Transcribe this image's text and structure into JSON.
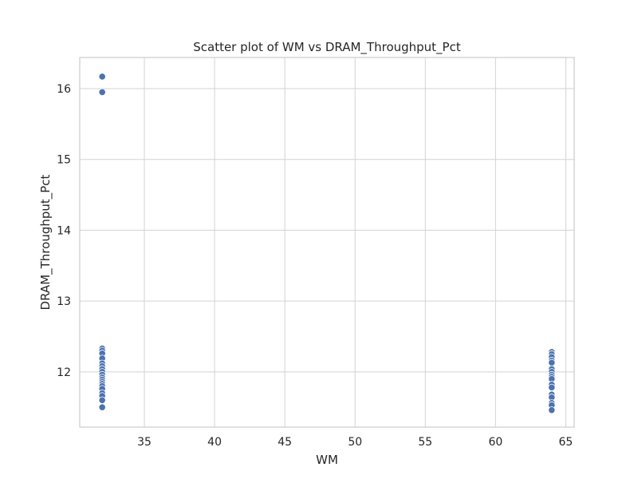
{
  "chart_data": {
    "type": "scatter",
    "title": "Scatter plot of WM vs DRAM_Throughput_Pct",
    "xlabel": "WM",
    "ylabel": "DRAM_Throughput_Pct",
    "xlim": [
      30.4,
      65.6
    ],
    "ylim": [
      11.22,
      16.44
    ],
    "xticks": [
      35,
      40,
      45,
      50,
      55,
      60,
      65
    ],
    "yticks": [
      12,
      13,
      14,
      15,
      16
    ],
    "grid": true,
    "marker_color": "#4c72b0",
    "points": [
      {
        "x": 32,
        "y": 16.17
      },
      {
        "x": 32,
        "y": 15.95
      },
      {
        "x": 32,
        "y": 12.33
      },
      {
        "x": 32,
        "y": 12.3
      },
      {
        "x": 32,
        "y": 12.26
      },
      {
        "x": 32,
        "y": 12.19
      },
      {
        "x": 32,
        "y": 12.12
      },
      {
        "x": 32,
        "y": 12.08
      },
      {
        "x": 32,
        "y": 12.04
      },
      {
        "x": 32,
        "y": 12.0
      },
      {
        "x": 32,
        "y": 11.96
      },
      {
        "x": 32,
        "y": 11.92
      },
      {
        "x": 32,
        "y": 11.89
      },
      {
        "x": 32,
        "y": 11.86
      },
      {
        "x": 32,
        "y": 11.83
      },
      {
        "x": 32,
        "y": 11.8
      },
      {
        "x": 32,
        "y": 11.76
      },
      {
        "x": 32,
        "y": 11.7
      },
      {
        "x": 32,
        "y": 11.66
      },
      {
        "x": 32,
        "y": 11.6
      },
      {
        "x": 32,
        "y": 11.5
      },
      {
        "x": 64,
        "y": 12.28
      },
      {
        "x": 64,
        "y": 12.25
      },
      {
        "x": 64,
        "y": 12.21
      },
      {
        "x": 64,
        "y": 12.16
      },
      {
        "x": 64,
        "y": 12.13
      },
      {
        "x": 64,
        "y": 12.04
      },
      {
        "x": 64,
        "y": 12.0
      },
      {
        "x": 64,
        "y": 11.96
      },
      {
        "x": 64,
        "y": 11.93
      },
      {
        "x": 64,
        "y": 11.9
      },
      {
        "x": 64,
        "y": 11.82
      },
      {
        "x": 64,
        "y": 11.78
      },
      {
        "x": 64,
        "y": 11.68
      },
      {
        "x": 64,
        "y": 11.64
      },
      {
        "x": 64,
        "y": 11.56
      },
      {
        "x": 64,
        "y": 11.53
      },
      {
        "x": 64,
        "y": 11.46
      }
    ]
  }
}
